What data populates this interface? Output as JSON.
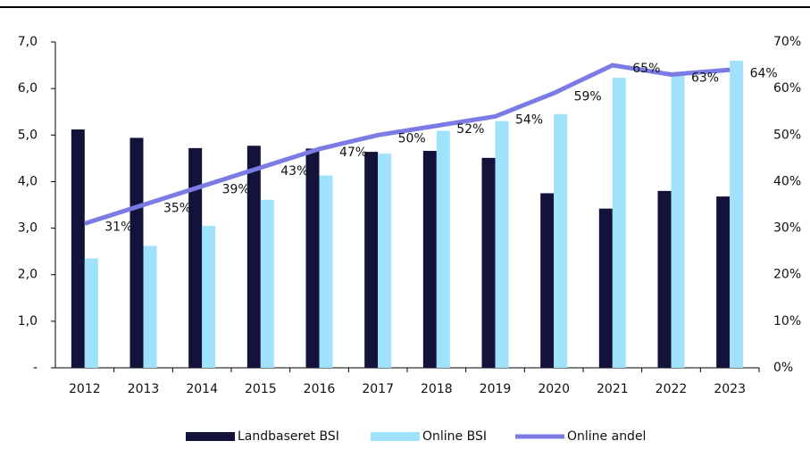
{
  "chart_data": {
    "type": "bar_line",
    "categories": [
      "2012",
      "2013",
      "2014",
      "2015",
      "2016",
      "2017",
      "2018",
      "2019",
      "2020",
      "2021",
      "2022",
      "2023"
    ],
    "series": [
      {
        "name": "Landbaseret BSI",
        "color": "#13123a",
        "values": [
          5.12,
          4.94,
          4.72,
          4.77,
          4.71,
          4.64,
          4.66,
          4.51,
          3.75,
          3.42,
          3.8,
          3.68
        ]
      },
      {
        "name": "Online BSI",
        "color": "#a0e1fb",
        "values": [
          2.35,
          2.62,
          3.05,
          3.61,
          4.13,
          4.6,
          5.09,
          5.3,
          5.45,
          6.23,
          6.3,
          6.6
        ]
      },
      {
        "name": "Online andel",
        "color": "#7b7be6",
        "axis": "y2",
        "type": "line",
        "values": [
          31,
          35,
          39,
          43,
          47,
          50,
          52,
          54,
          59,
          65,
          63,
          64
        ],
        "value_labels": [
          "31%",
          "35%",
          "39%",
          "43%",
          "47%",
          "50%",
          "52%",
          "54%",
          "59%",
          "65%",
          "63%",
          "64%"
        ]
      }
    ],
    "ylim": [
      0,
      7
    ],
    "yticks": [
      {
        "value": 0,
        "label": "-"
      },
      {
        "value": 1,
        "label": "1,0"
      },
      {
        "value": 2,
        "label": "2,0"
      },
      {
        "value": 3,
        "label": "3,0"
      },
      {
        "value": 4,
        "label": "4,0"
      },
      {
        "value": 5,
        "label": "5,0"
      },
      {
        "value": 6,
        "label": "6,0"
      },
      {
        "value": 7,
        "label": "7,0"
      }
    ],
    "y2lim": [
      0,
      70
    ],
    "y2ticks": [
      {
        "value": 0,
        "label": "0%"
      },
      {
        "value": 10,
        "label": "10%"
      },
      {
        "value": 20,
        "label": "20%"
      },
      {
        "value": 30,
        "label": "30%"
      },
      {
        "value": 40,
        "label": "40%"
      },
      {
        "value": 50,
        "label": "50%"
      },
      {
        "value": 60,
        "label": "60%"
      },
      {
        "value": 70,
        "label": "70%"
      }
    ],
    "legend": "bottom"
  }
}
